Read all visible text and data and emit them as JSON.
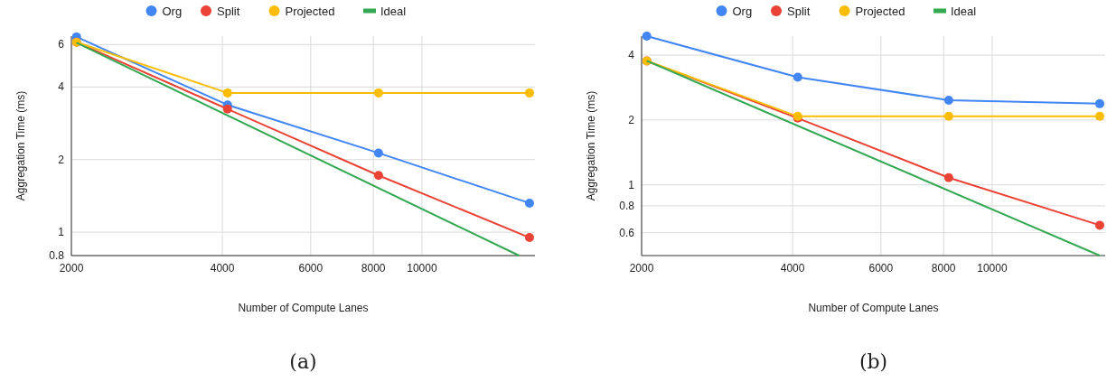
{
  "chart_data": [
    {
      "type": "line",
      "xlabel": "Number of Compute Lanes",
      "ylabel": "Aggregation Time (ms)",
      "log": "xy",
      "grid": true,
      "legend": "top",
      "xlim": [
        2000,
        16800
      ],
      "xticks": [
        2000,
        4000,
        6000,
        8000,
        10000
      ],
      "ylim": [
        0.8,
        6.5
      ],
      "yticks": [
        0.8,
        1,
        2,
        4,
        6
      ],
      "annotations": [
        "(a)"
      ],
      "series": [
        {
          "name": "Org",
          "color": "#4285f4",
          "marker": "circle",
          "x": [
            2048,
            4096,
            8192,
            16384
          ],
          "values": [
            6.45,
            3.37,
            2.13,
            1.32
          ]
        },
        {
          "name": "Split",
          "color": "#ea4335",
          "marker": "circle",
          "x": [
            2048,
            4096,
            8192,
            16384
          ],
          "values": [
            6.13,
            3.24,
            1.72,
            0.95
          ]
        },
        {
          "name": "Projected",
          "color": "#fbbc04",
          "marker": "circle",
          "x": [
            2048,
            4096,
            8192,
            16384
          ],
          "values": [
            6.13,
            3.78,
            3.78,
            3.78
          ]
        },
        {
          "name": "Ideal",
          "color": "#34a853",
          "marker": "none",
          "x": [
            2048,
            15616
          ],
          "values": [
            6.1,
            0.8
          ]
        }
      ]
    },
    {
      "type": "line",
      "xlabel": "Number of Compute Lanes",
      "ylabel": "Aggregation Time (ms)",
      "log": "xy",
      "grid": true,
      "legend": "top",
      "xlim": [
        2000,
        16800
      ],
      "xticks": [
        2000,
        4000,
        6000,
        8000,
        10000
      ],
      "ylim": [
        0.47,
        4.9
      ],
      "yticks": [
        0.6,
        0.8,
        1,
        2,
        4
      ],
      "annotations": [
        "(b)"
      ],
      "series": [
        {
          "name": "Org",
          "color": "#4285f4",
          "marker": "circle",
          "x": [
            2048,
            4096,
            8192,
            16384
          ],
          "values": [
            4.9,
            3.16,
            2.47,
            2.38
          ]
        },
        {
          "name": "Split",
          "color": "#ea4335",
          "marker": "circle",
          "x": [
            2048,
            4096,
            8192,
            16384
          ],
          "values": [
            3.76,
            2.04,
            1.08,
            0.65
          ]
        },
        {
          "name": "Projected",
          "color": "#fbbc04",
          "marker": "circle",
          "x": [
            2048,
            4096,
            8192,
            16384
          ],
          "values": [
            3.76,
            2.08,
            2.08,
            2.08
          ]
        },
        {
          "name": "Ideal",
          "color": "#34a853",
          "marker": "none",
          "x": [
            2048,
            16384
          ],
          "values": [
            3.76,
            0.47
          ]
        }
      ]
    }
  ]
}
